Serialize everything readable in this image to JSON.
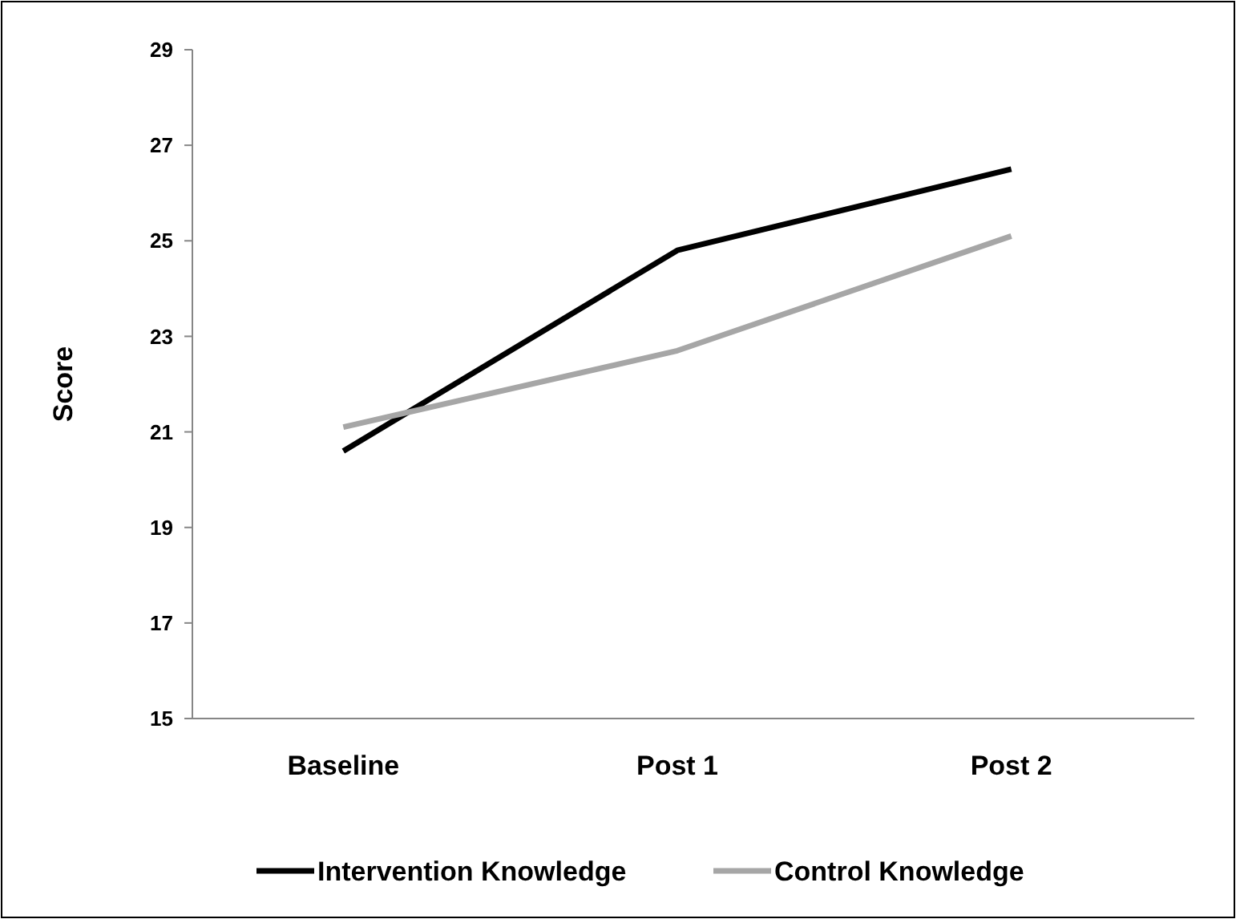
{
  "chart_data": {
    "type": "line",
    "ylabel": "Score",
    "categories": [
      "Baseline",
      "Post 1",
      "Post 2"
    ],
    "series": [
      {
        "name": "Intervention Knowledge",
        "color": "#000000",
        "values": [
          20.6,
          24.8,
          26.5
        ]
      },
      {
        "name": "Control Knowledge",
        "color": "#a6a6a6",
        "values": [
          21.1,
          22.7,
          25.1
        ]
      }
    ],
    "ylim": [
      15,
      29
    ],
    "yticks": [
      15,
      17,
      19,
      21,
      23,
      25,
      27,
      29
    ],
    "grid": false,
    "legend": "bottom",
    "marker": "none"
  }
}
